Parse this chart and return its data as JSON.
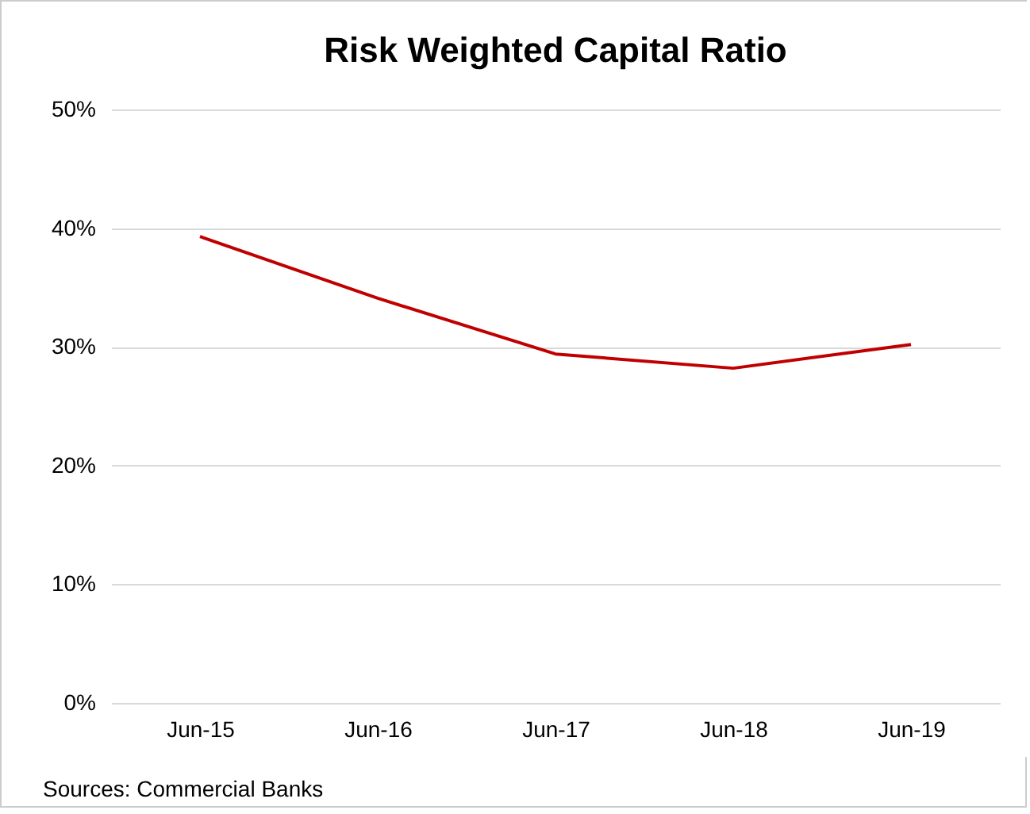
{
  "chart_data": {
    "type": "line",
    "title": "Risk Weighted Capital Ratio",
    "categories": [
      "Jun-15",
      "Jun-16",
      "Jun-17",
      "Jun-18",
      "Jun-19"
    ],
    "series": [
      {
        "color": "#c00000",
        "values": [
          39.3,
          34.1,
          29.4,
          28.2,
          30.2
        ]
      }
    ],
    "ylim": [
      0,
      50
    ],
    "yticks": [
      {
        "value": 0,
        "label": "0%"
      },
      {
        "value": 10,
        "label": "10%"
      },
      {
        "value": 20,
        "label": "20%"
      },
      {
        "value": 30,
        "label": "30%"
      },
      {
        "value": 40,
        "label": "40%"
      },
      {
        "value": 50,
        "label": "50%"
      }
    ],
    "grid": "y",
    "legend": false,
    "marker": "none",
    "line_style": "solid",
    "annotations": [
      "Sources: Commercial Banks"
    ]
  }
}
